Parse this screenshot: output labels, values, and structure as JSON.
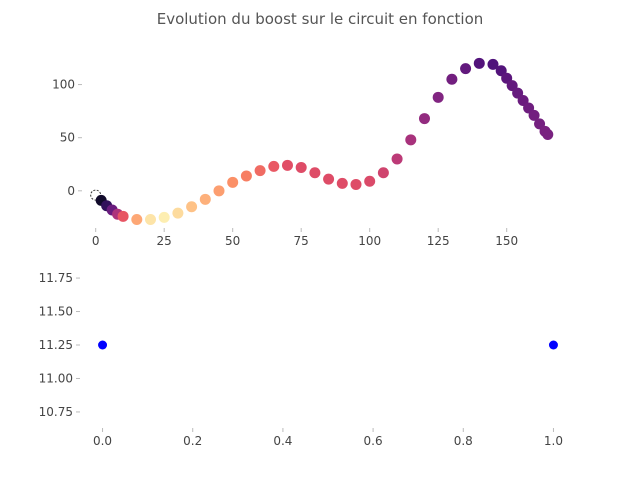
{
  "colors": {
    "dot2": "#0000ff",
    "axis_tick": "#bbbbbb",
    "text": "#444444"
  },
  "chart_data": [
    {
      "type": "scatter",
      "title": "Evolution du boost sur le circuit en fonction",
      "colormap": "magma",
      "xlim": [
        -5,
        168
      ],
      "ylim": [
        -35,
        125
      ],
      "xticks": [
        "0",
        "25",
        "50",
        "75",
        "100",
        "125",
        "150"
      ],
      "yticks": [
        "0",
        "50",
        "100"
      ],
      "series": [
        {
          "x": [
            0,
            2,
            4,
            6,
            8,
            10,
            15,
            20,
            25,
            30,
            35,
            40,
            45,
            50,
            55,
            60,
            65,
            70,
            75,
            80,
            85,
            90,
            95,
            100,
            105,
            110,
            115,
            120,
            125,
            130,
            135,
            140,
            145,
            148,
            150,
            152,
            154,
            156,
            158,
            160,
            162,
            164,
            165
          ],
          "y": [
            -4,
            -9,
            -14,
            -18,
            -22,
            -24,
            -27,
            -27,
            -25,
            -21,
            -15,
            -8,
            0,
            8,
            14,
            19,
            23,
            24,
            22,
            17,
            11,
            7,
            6,
            9,
            17,
            30,
            48,
            68,
            88,
            105,
            115,
            120,
            119,
            113,
            106,
            99,
            92,
            85,
            78,
            71,
            63,
            56,
            53
          ],
          "color_values": [
            0.0,
            0.08,
            0.18,
            0.32,
            0.48,
            0.64,
            0.82,
            0.95,
            0.97,
            0.93,
            0.88,
            0.84,
            0.8,
            0.77,
            0.73,
            0.69,
            0.65,
            0.62,
            0.61,
            0.61,
            0.61,
            0.61,
            0.61,
            0.6,
            0.57,
            0.52,
            0.47,
            0.42,
            0.38,
            0.34,
            0.3,
            0.26,
            0.25,
            0.26,
            0.28,
            0.3,
            0.31,
            0.32,
            0.33,
            0.34,
            0.35,
            0.36,
            0.36
          ]
        }
      ]
    },
    {
      "type": "scatter",
      "xlim": [
        -0.05,
        1.05
      ],
      "ylim": [
        10.63,
        11.87
      ],
      "xticks": [
        "0.0",
        "0.2",
        "0.4",
        "0.6",
        "0.8",
        "1.0"
      ],
      "yticks": [
        "10.75",
        "11.00",
        "11.25",
        "11.50",
        "11.75"
      ],
      "series": [
        {
          "x": [
            0.0,
            1.0
          ],
          "y": [
            11.25,
            11.25
          ]
        }
      ]
    }
  ]
}
